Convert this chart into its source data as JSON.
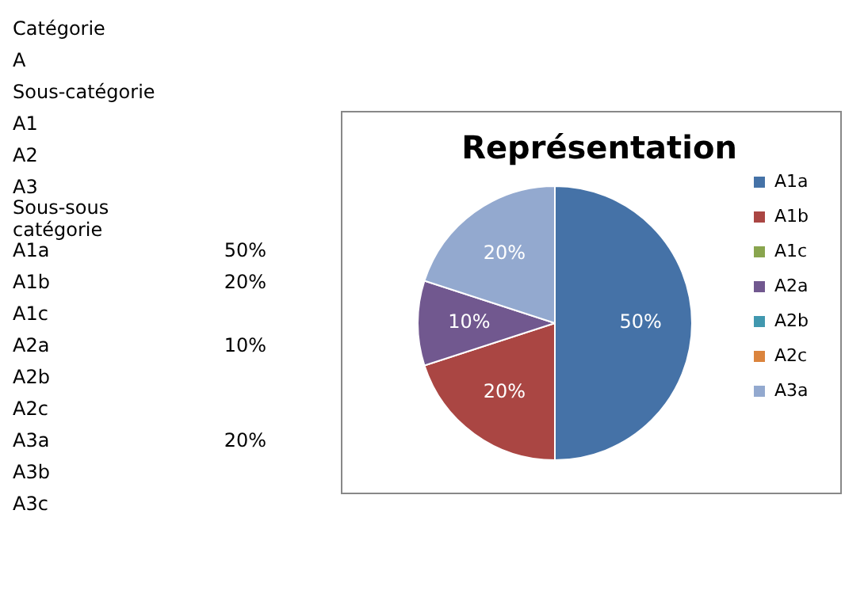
{
  "chart_data": {
    "type": "pie",
    "title": "Représentation",
    "categories": [
      "A1a",
      "A1b",
      "A1c",
      "A2a",
      "A2b",
      "A2c",
      "A3a"
    ],
    "values": [
      50,
      20,
      0,
      10,
      0,
      0,
      20
    ],
    "colors": [
      "#4572a7",
      "#aa4643",
      "#89a54e",
      "#71588f",
      "#4198af",
      "#db843d",
      "#93a9cf"
    ],
    "value_labels": [
      "50%",
      "20%",
      null,
      "10%",
      null,
      null,
      "20%"
    ],
    "legend": "right",
    "annotations": [
      "Catégorie",
      "A",
      "Sous-catégorie",
      "A1",
      "A2",
      "A3",
      "Sous-sous catégorie",
      "A1a\t50%",
      "A1b\t20%",
      "A1c",
      "A2a\t10%",
      "A2b",
      "A2c",
      "A3a\t20%",
      "A3b",
      "A3c"
    ]
  }
}
